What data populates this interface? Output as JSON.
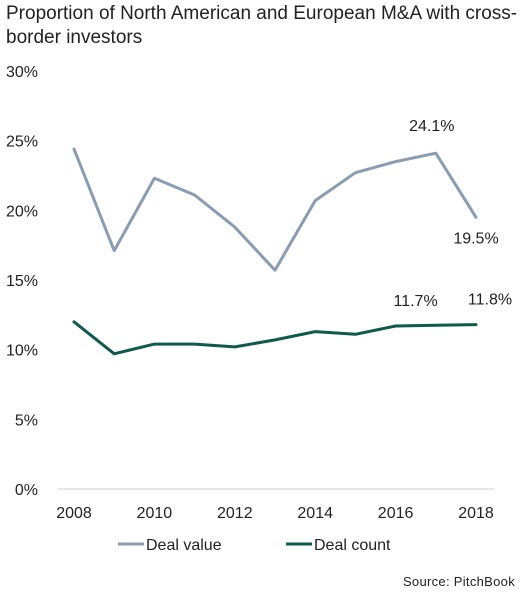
{
  "colors": {
    "deal_value": "#8a9cb2",
    "deal_count": "#0e5a4c",
    "axis": "#cfcfcf"
  },
  "chart_data": {
    "type": "line",
    "title": "Proportion of North American and European M&A with cross-border investors",
    "x": [
      2008,
      2009,
      2010,
      2011,
      2012,
      2013,
      2014,
      2015,
      2016,
      2017,
      2018
    ],
    "x_ticks": [
      "2008",
      "2010",
      "2012",
      "2014",
      "2016",
      "2018"
    ],
    "y_ticks": [
      "0%",
      "5%",
      "10%",
      "15%",
      "20%",
      "25%",
      "30%"
    ],
    "ylim": [
      0,
      30
    ],
    "grid": false,
    "legend_position": "bottom",
    "series": [
      {
        "name": "Deal value",
        "values": [
          24.4,
          17.1,
          22.3,
          21.1,
          18.8,
          15.7,
          20.7,
          22.7,
          23.5,
          24.1,
          19.5
        ],
        "labels": [
          {
            "index": 9,
            "text": "24.1%"
          },
          {
            "index": 10,
            "text": "19.5%"
          }
        ]
      },
      {
        "name": "Deal count",
        "values": [
          12.0,
          9.7,
          10.4,
          10.4,
          10.2,
          10.7,
          11.3,
          11.1,
          11.7,
          11.75,
          11.8
        ],
        "labels": [
          {
            "index": 8,
            "text": "11.7%"
          },
          {
            "index": 10,
            "text": "11.8%"
          }
        ]
      }
    ],
    "source": "Source: PitchBook"
  }
}
